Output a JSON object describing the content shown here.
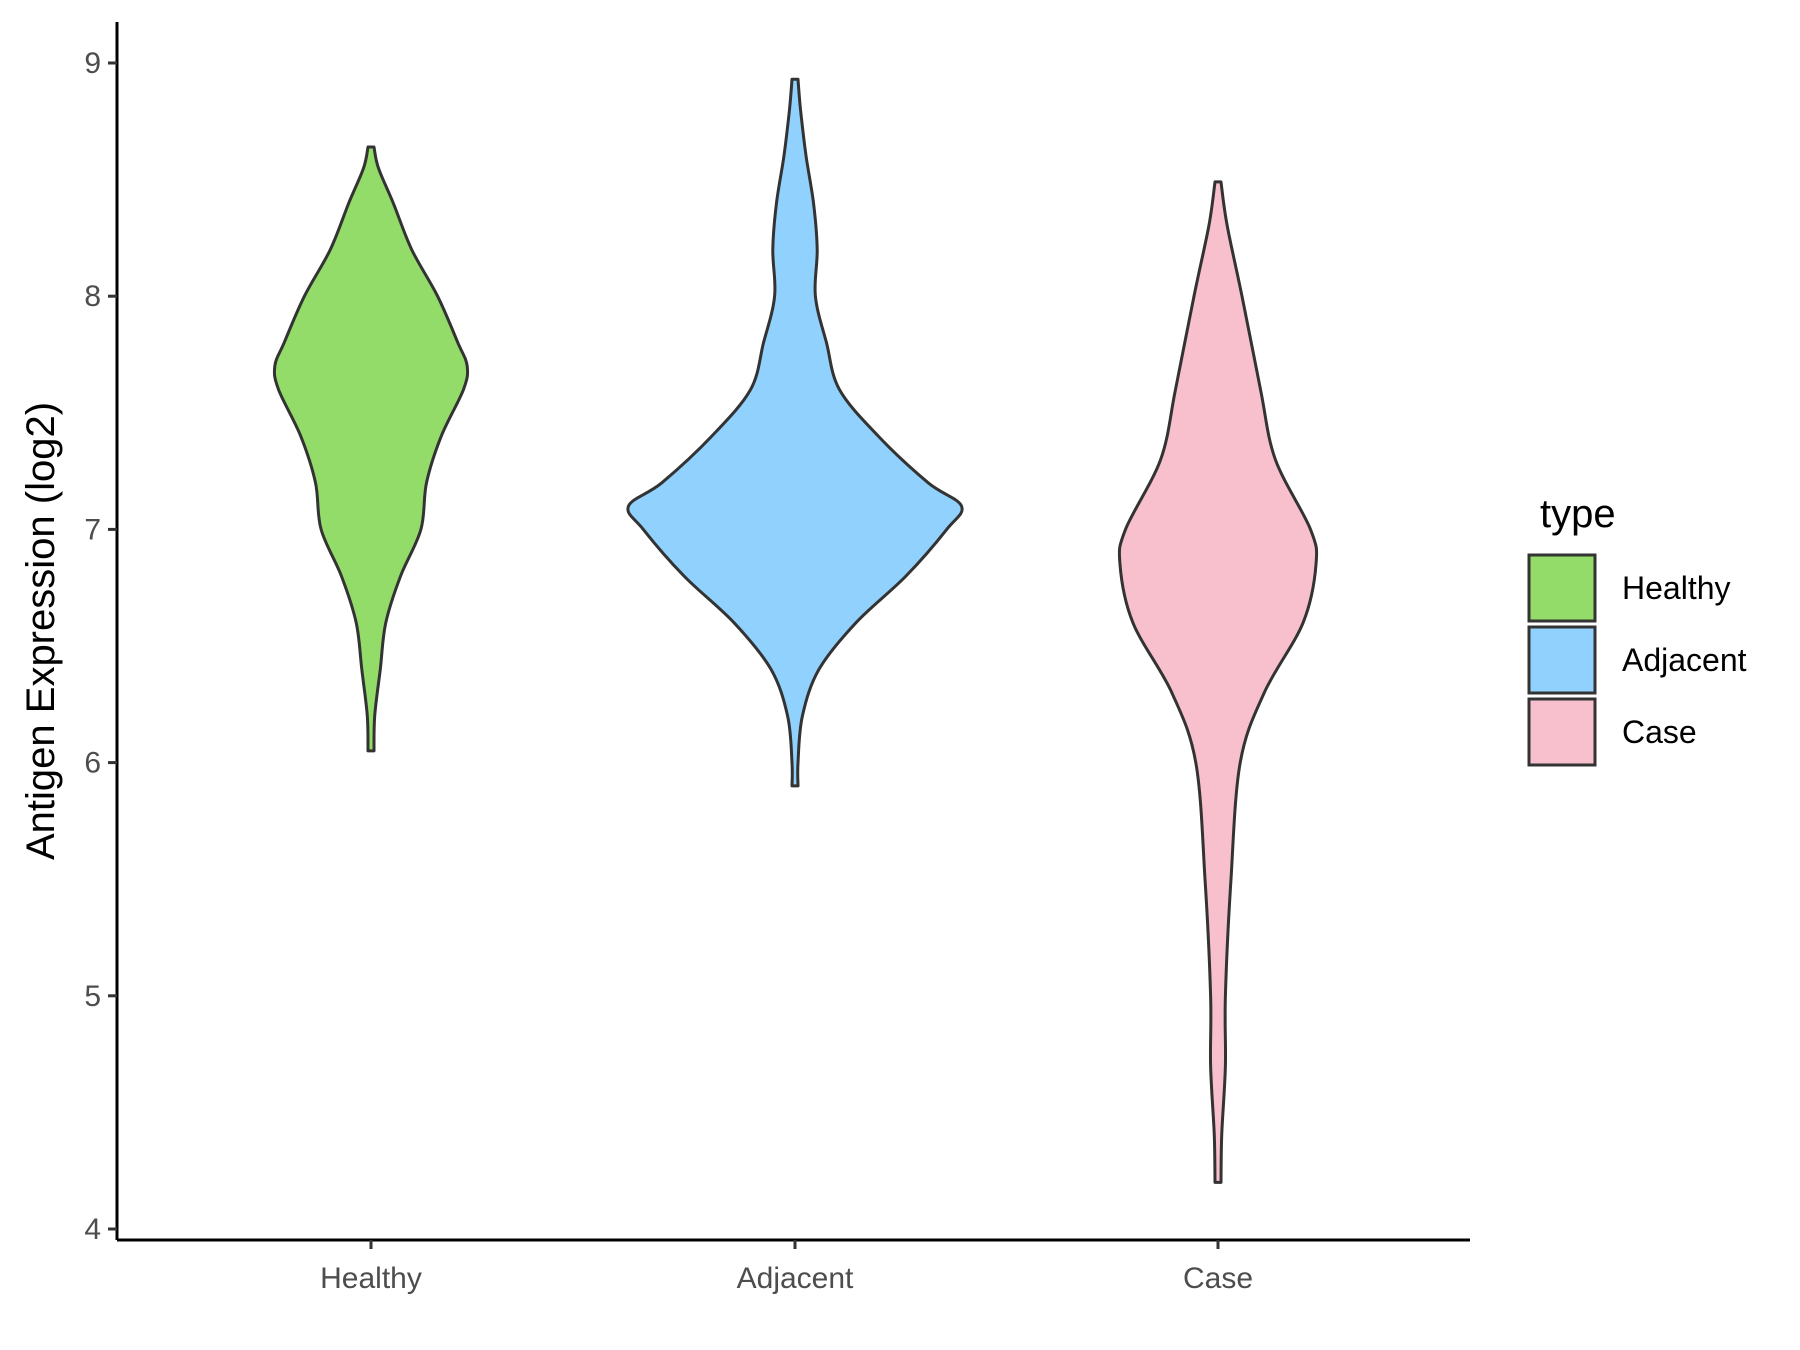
{
  "chart_data": {
    "type": "violin",
    "title": "",
    "xlabel": "",
    "ylabel": "Antigen Expression (log2)",
    "ylim": [
      3.95,
      9.2
    ],
    "yticks": [
      4,
      5,
      6,
      7,
      8,
      9
    ],
    "categories": [
      "Healthy",
      "Adjacent",
      "Case"
    ],
    "grid": false,
    "legend": {
      "title": "type",
      "placement": "right",
      "items": [
        "Healthy",
        "Adjacent",
        "Case"
      ]
    },
    "series": [
      {
        "name": "Healthy",
        "color": "#93dc6a",
        "min": 6.05,
        "max": 8.64,
        "density_profile": [
          [
            6.05,
            0.0
          ],
          [
            6.2,
            0.02
          ],
          [
            6.4,
            0.05
          ],
          [
            6.6,
            0.08
          ],
          [
            6.8,
            0.16
          ],
          [
            7.0,
            0.27
          ],
          [
            7.2,
            0.3
          ],
          [
            7.4,
            0.38
          ],
          [
            7.6,
            0.5
          ],
          [
            7.7,
            0.52
          ],
          [
            7.8,
            0.47
          ],
          [
            8.0,
            0.36
          ],
          [
            8.2,
            0.22
          ],
          [
            8.4,
            0.12
          ],
          [
            8.55,
            0.04
          ],
          [
            8.64,
            0.0
          ]
        ]
      },
      {
        "name": "Adjacent",
        "color": "#91d1fe",
        "min": 5.9,
        "max": 8.93,
        "density_profile": [
          [
            5.9,
            0.0
          ],
          [
            6.0,
            0.01
          ],
          [
            6.2,
            0.04
          ],
          [
            6.4,
            0.13
          ],
          [
            6.6,
            0.33
          ],
          [
            6.8,
            0.6
          ],
          [
            7.0,
            0.82
          ],
          [
            7.1,
            0.9
          ],
          [
            7.2,
            0.72
          ],
          [
            7.4,
            0.45
          ],
          [
            7.6,
            0.24
          ],
          [
            7.8,
            0.17
          ],
          [
            8.0,
            0.11
          ],
          [
            8.2,
            0.12
          ],
          [
            8.4,
            0.1
          ],
          [
            8.6,
            0.06
          ],
          [
            8.8,
            0.03
          ],
          [
            8.93,
            0.0
          ]
        ]
      },
      {
        "name": "Case",
        "color": "#f7c0cc",
        "min": 4.2,
        "max": 8.49,
        "density_profile": [
          [
            4.2,
            0.0
          ],
          [
            4.4,
            0.02
          ],
          [
            4.7,
            0.04
          ],
          [
            5.0,
            0.04
          ],
          [
            5.5,
            0.07
          ],
          [
            6.0,
            0.12
          ],
          [
            6.3,
            0.25
          ],
          [
            6.6,
            0.46
          ],
          [
            6.85,
            0.53
          ],
          [
            7.0,
            0.5
          ],
          [
            7.3,
            0.31
          ],
          [
            7.6,
            0.23
          ],
          [
            8.0,
            0.13
          ],
          [
            8.3,
            0.05
          ],
          [
            8.49,
            0.0
          ]
        ]
      }
    ]
  }
}
